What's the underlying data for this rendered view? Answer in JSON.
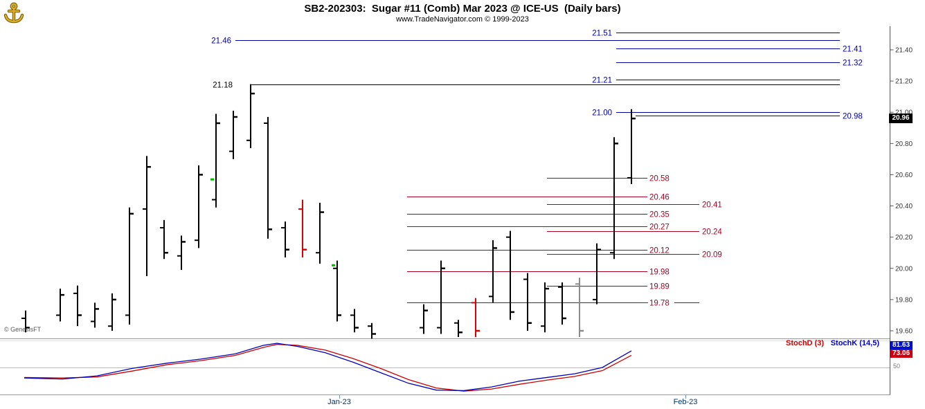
{
  "header": {
    "title": "SB2-202303:  Sugar #11 (Comb) Mar 2023 @ ICE-US  (Daily bars)",
    "subtitle": "www.TradeNavigator.com © 1999-2023"
  },
  "watermark": "© GenesisFT",
  "colors": {
    "bar_default": "#000000",
    "bar_red": "#dd0000",
    "bar_gray": "#8a8a8a",
    "level_blue": "#0000aa",
    "level_black": "#000000",
    "level_red": "#aa0022",
    "axis_text": "#333333",
    "axis_line": "#555555",
    "panel_border": "#999999",
    "midline": "#bbbbbb",
    "month_text": "#003366",
    "month_tick": "#6699cc",
    "stoch_k": "#0000bb",
    "stoch_d": "#cc0000",
    "marker_green": "#00bb00"
  },
  "chart_data": {
    "type": "ohlc-bar",
    "title": "SB2-202303: Sugar #11 (Comb) Mar 2023 @ ICE-US (Daily bars)",
    "grid": false,
    "last_price": "20.96",
    "price_axis": {
      "ylim": [
        19.55,
        21.55
      ],
      "ticks": [
        "21.40",
        "21.20",
        "21.00",
        "20.80",
        "20.60",
        "20.40",
        "20.20",
        "20.00",
        "19.80",
        "19.60"
      ]
    },
    "x_axis": {
      "labels": [
        {
          "text": "Jan-23",
          "x": 490
        },
        {
          "text": "Feb-23",
          "x": 990
        }
      ]
    },
    "bar_format": [
      "x",
      "open",
      "high",
      "low",
      "close",
      "color(k=black,r=red,gy=gray)"
    ],
    "bars": [
      [
        37,
        19.68,
        19.73,
        19.59,
        19.62,
        "k"
      ],
      [
        87,
        19.7,
        19.87,
        19.66,
        19.83,
        "k"
      ],
      [
        112,
        19.84,
        19.89,
        19.63,
        19.7,
        "k"
      ],
      [
        137,
        19.66,
        19.78,
        19.62,
        19.74,
        "k"
      ],
      [
        162,
        19.63,
        19.84,
        19.6,
        19.8,
        "k"
      ],
      [
        187,
        19.7,
        20.39,
        19.64,
        20.35,
        "k"
      ],
      [
        212,
        20.38,
        20.72,
        19.95,
        20.65,
        "k"
      ],
      [
        237,
        20.26,
        20.31,
        20.06,
        20.1,
        "k"
      ],
      [
        262,
        20.08,
        20.21,
        19.99,
        20.17,
        "k"
      ],
      [
        287,
        20.18,
        20.66,
        20.13,
        20.6,
        "k"
      ],
      [
        312,
        20.44,
        20.99,
        20.39,
        20.93,
        "k"
      ],
      [
        337,
        20.75,
        21.01,
        20.7,
        20.97,
        "k"
      ],
      [
        362,
        20.82,
        21.18,
        20.77,
        21.12,
        "k"
      ],
      [
        387,
        20.93,
        20.97,
        20.19,
        20.25,
        "k"
      ],
      [
        412,
        20.26,
        20.3,
        20.07,
        20.12,
        "k"
      ],
      [
        437,
        20.38,
        20.44,
        20.07,
        20.12,
        "r"
      ],
      [
        462,
        20.1,
        20.42,
        20.03,
        20.36,
        "k"
      ],
      [
        487,
        20.0,
        20.05,
        19.66,
        19.7,
        "k"
      ],
      [
        512,
        19.7,
        19.74,
        19.59,
        19.62,
        "k"
      ],
      [
        537,
        19.63,
        19.65,
        19.55,
        19.58,
        "k"
      ],
      [
        612,
        19.62,
        19.77,
        19.58,
        19.73,
        "k"
      ],
      [
        637,
        19.62,
        20.05,
        19.58,
        20.0,
        "k"
      ],
      [
        662,
        19.65,
        19.67,
        19.56,
        19.59,
        "k"
      ],
      [
        687,
        19.78,
        19.81,
        19.56,
        19.6,
        "r"
      ],
      [
        712,
        19.82,
        20.18,
        19.78,
        20.13,
        "k"
      ],
      [
        737,
        20.2,
        20.24,
        19.67,
        19.72,
        "k"
      ],
      [
        762,
        19.93,
        19.97,
        19.6,
        19.65,
        "k"
      ],
      [
        787,
        19.63,
        19.91,
        19.59,
        19.87,
        "k"
      ],
      [
        812,
        19.88,
        19.91,
        19.64,
        19.68,
        "k"
      ],
      [
        837,
        19.9,
        19.94,
        19.56,
        19.6,
        "gy"
      ],
      [
        862,
        19.8,
        20.16,
        19.77,
        20.12,
        "k"
      ],
      [
        887,
        20.1,
        20.84,
        20.06,
        20.8,
        "k"
      ],
      [
        912,
        20.58,
        21.02,
        20.54,
        20.96,
        "k"
      ]
    ],
    "markers": [
      {
        "x": 312,
        "price": 20.57
      },
      {
        "x": 487,
        "price": 20.02
      }
    ],
    "levels": [
      {
        "price": 21.51,
        "label": "21.51",
        "color": "blue",
        "x1": 890,
        "x2": 1213,
        "label_x": 884,
        "align": "right"
      },
      {
        "price": 21.46,
        "label": "21.46",
        "color": "blue",
        "x1": 340,
        "x2": 1213,
        "label_x": 334,
        "align": "right"
      },
      {
        "price": 21.41,
        "label": "21.41",
        "color": "blue",
        "x1": 890,
        "x2": 1213,
        "label_x": 1217,
        "align": "left"
      },
      {
        "price": 21.32,
        "label": "21.32",
        "color": "blue",
        "x1": 890,
        "x2": 1213,
        "label_x": 1217,
        "align": "left"
      },
      {
        "price": 21.21,
        "label": "21.21",
        "color": "blue",
        "x1": 890,
        "x2": 1213,
        "label_x": 884,
        "align": "right"
      },
      {
        "price": 21.18,
        "label": "21.18",
        "color": "black",
        "x1": 362,
        "x2": 1213,
        "label_x": 336,
        "align": "right"
      },
      {
        "price": 21.0,
        "label": "21.00",
        "color": "blue",
        "x1": 890,
        "x2": 1213,
        "label_x": 884,
        "align": "right"
      },
      {
        "price": 20.98,
        "label": "20.98",
        "color": "blue",
        "x1": 918,
        "x2": 1213,
        "label_x": 1217,
        "align": "left"
      },
      {
        "price": 20.58,
        "label": "20.58",
        "color": "red",
        "x1": 790,
        "x2": 935,
        "label_x": 938,
        "align": "left"
      },
      {
        "price": 20.46,
        "label": "20.46",
        "color": "red",
        "x1": 588,
        "x2": 935,
        "label_x": 938,
        "align": "left"
      },
      {
        "price": 20.41,
        "label": "20.41",
        "color": "red",
        "x1": 790,
        "x2": 1010,
        "label_x": 1014,
        "align": "left"
      },
      {
        "price": 20.35,
        "label": "20.35",
        "color": "red",
        "x1": 588,
        "x2": 935,
        "label_x": 938,
        "align": "left"
      },
      {
        "price": 20.27,
        "label": "20.27",
        "color": "red",
        "x1": 588,
        "x2": 935,
        "label_x": 938,
        "align": "left"
      },
      {
        "price": 20.24,
        "label": "20.24",
        "color": "red",
        "x1": 790,
        "x2": 1010,
        "label_x": 1014,
        "align": "left"
      },
      {
        "price": 20.12,
        "label": "20.12",
        "color": "red",
        "x1": 588,
        "x2": 935,
        "label_x": 938,
        "align": "left"
      },
      {
        "price": 20.09,
        "label": "20.09",
        "color": "red",
        "x1": 790,
        "x2": 1010,
        "label_x": 1014,
        "align": "left"
      },
      {
        "price": 19.98,
        "label": "19.98",
        "color": "red",
        "x1": 588,
        "x2": 935,
        "label_x": 938,
        "align": "left"
      },
      {
        "price": 19.89,
        "label": "19.89",
        "color": "red",
        "x1": 790,
        "x2": 935,
        "label_x": 938,
        "align": "left"
      },
      {
        "price": 19.78,
        "label": "19.78",
        "color": "red",
        "x1": 588,
        "x2": 1010,
        "label_x": 938,
        "align": "left"
      }
    ],
    "stochastic": {
      "label_d": "StochD (3)",
      "label_k": "StochK (14,5)",
      "value_k": "81.63",
      "value_d": "73.06",
      "mid_label": "50",
      "midline": 50,
      "range": [
        0,
        100
      ],
      "k": {
        "x": [
          35,
          90,
          140,
          190,
          240,
          290,
          340,
          380,
          400,
          430,
          470,
          510,
          550,
          590,
          630,
          670,
          710,
          750,
          790,
          830,
          870,
          912
        ],
        "v": [
          30,
          28,
          34,
          48,
          58,
          66,
          76,
          92,
          96,
          90,
          78,
          60,
          40,
          20,
          7,
          6,
          13,
          24,
          31,
          38,
          50,
          81.63
        ]
      },
      "d": {
        "x": [
          35,
          90,
          140,
          190,
          240,
          290,
          340,
          380,
          400,
          430,
          470,
          510,
          550,
          590,
          630,
          670,
          710,
          750,
          790,
          830,
          870,
          912
        ],
        "v": [
          31,
          30,
          32,
          43,
          55,
          63,
          73,
          88,
          94,
          92,
          83,
          67,
          48,
          27,
          11,
          5,
          9,
          18,
          26,
          33,
          44,
          73.06
        ]
      }
    }
  }
}
